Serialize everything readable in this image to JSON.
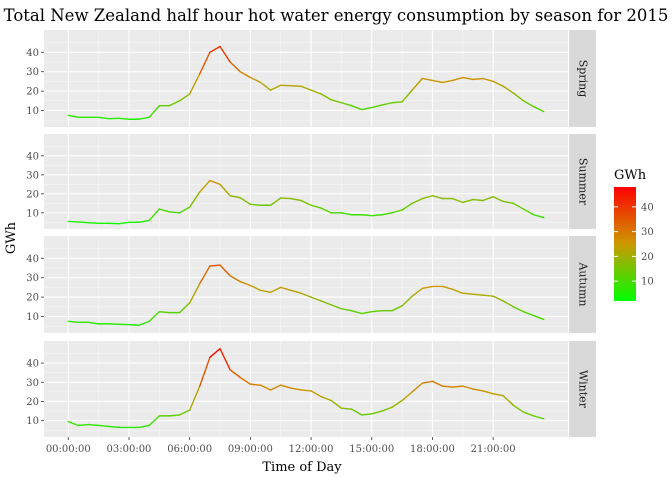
{
  "chart_data": {
    "type": "line",
    "title": "Total New Zealand half hour hot water energy consumption by season for 2015",
    "xlabel": "Time of Day",
    "ylabel": "GWh",
    "x_tick_labels": [
      "00:00:00",
      "03:00:00",
      "06:00:00",
      "09:00:00",
      "12:00:00",
      "15:00:00",
      "18:00:00",
      "21:00:00"
    ],
    "x_tick_hours": [
      0,
      3,
      6,
      9,
      12,
      15,
      18,
      21
    ],
    "x_range_hours": [
      -1.2,
      24.7
    ],
    "y_ticks": [
      10,
      20,
      30,
      40
    ],
    "ylim": [
      1.5,
      51.5
    ],
    "facet_strips": "right",
    "grid": true,
    "legend": {
      "title": "GWh",
      "position": "right",
      "ticks": [
        10,
        20,
        30,
        40
      ],
      "range": [
        2,
        48
      ],
      "colors": {
        "low": "#00ff00",
        "mid": "#cc9900",
        "high": "#ff0000"
      }
    },
    "x_hours": [
      0,
      0.5,
      1,
      1.5,
      2,
      2.5,
      3,
      3.5,
      4,
      4.5,
      5,
      5.5,
      6,
      6.5,
      7,
      7.5,
      8,
      8.5,
      9,
      9.5,
      10,
      10.5,
      11,
      11.5,
      12,
      12.5,
      13,
      13.5,
      14,
      14.5,
      15,
      15.5,
      16,
      16.5,
      17,
      17.5,
      18,
      18.5,
      19,
      19.5,
      20,
      20.5,
      21,
      21.5,
      22,
      22.5,
      23,
      23.5
    ],
    "series": [
      {
        "name": "Spring",
        "values": [
          7.5,
          6.5,
          6.5,
          6.5,
          5.8,
          6,
          5.5,
          5.5,
          6.5,
          12.5,
          12.5,
          15,
          18.5,
          29,
          40,
          43,
          35,
          30,
          27,
          24.5,
          20.5,
          23,
          22.8,
          22.5,
          20.5,
          18.5,
          15.5,
          14,
          12.5,
          10.5,
          11.5,
          12.8,
          14,
          14.5,
          20.5,
          26.5,
          25.5,
          24.5,
          25.5,
          27,
          26,
          26.5,
          25,
          22.5,
          19,
          15,
          12,
          9.5
        ]
      },
      {
        "name": "Summer",
        "values": [
          5.5,
          5.2,
          4.8,
          4.5,
          4.5,
          4.3,
          5,
          5,
          6,
          12,
          10.5,
          10,
          13,
          21,
          27,
          25,
          19,
          18,
          14.5,
          14,
          14,
          17.8,
          17.5,
          16.5,
          14,
          12.5,
          10,
          10,
          9,
          9,
          8.5,
          9,
          10,
          11.5,
          15,
          17.5,
          19,
          17.5,
          17.5,
          15.5,
          17,
          16.5,
          18.5,
          16,
          15,
          12,
          9,
          7.5
        ]
      },
      {
        "name": "Autumn",
        "values": [
          7.5,
          7,
          7,
          6.2,
          6.2,
          6,
          5.8,
          5.5,
          7.5,
          12.5,
          12,
          12,
          17,
          27,
          36,
          36.5,
          31,
          28,
          26,
          23.5,
          22.5,
          25,
          23.5,
          22,
          20,
          18,
          16,
          14,
          13,
          11.5,
          12.5,
          13,
          13,
          15.5,
          20.5,
          24.5,
          25.5,
          25.5,
          24,
          22,
          21.5,
          21,
          20.5,
          18,
          15,
          12.5,
          10.5,
          8.5
        ]
      },
      {
        "name": "Winter",
        "values": [
          9.5,
          7.5,
          8,
          7.5,
          7,
          6.5,
          6.5,
          6.5,
          7.5,
          12.5,
          12.5,
          13,
          15.5,
          28,
          43,
          47.5,
          36.5,
          32.5,
          29,
          28.5,
          26,
          28.5,
          27,
          26,
          25.5,
          22.5,
          20.5,
          16.5,
          16,
          13,
          13.5,
          15,
          17,
          20.5,
          25,
          29.5,
          30.5,
          28,
          27.5,
          28,
          26.5,
          25.5,
          24,
          23,
          18,
          14.5,
          12.5,
          11
        ]
      }
    ]
  }
}
